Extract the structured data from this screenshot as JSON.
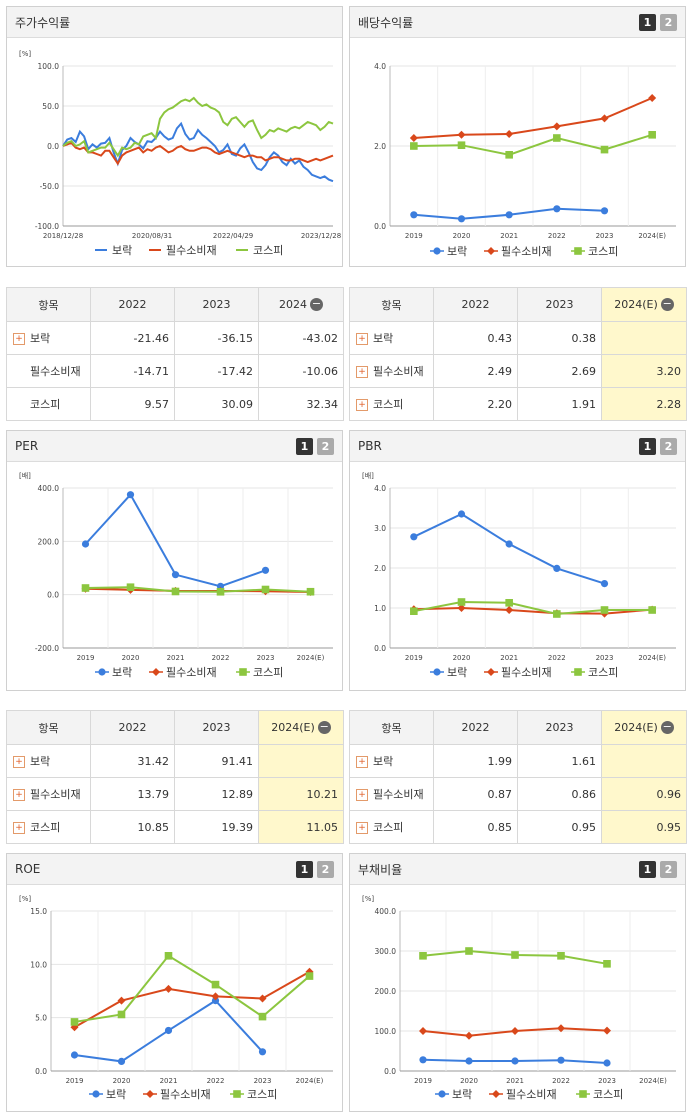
{
  "legend": {
    "s1": "보락",
    "s2": "필수소비재",
    "s3": "코스피"
  },
  "colors": {
    "s1": "#3b7ddd",
    "s2": "#d9481b",
    "s3": "#8cc63f"
  },
  "pages": [
    "1",
    "2"
  ],
  "table_header": {
    "label": "항목"
  },
  "panels": {
    "stock": {
      "title": "주가수익률",
      "unit": "[%]"
    },
    "dividend": {
      "title": "배당수익률"
    },
    "per": {
      "title": "PER",
      "unit": "[배]"
    },
    "pbr": {
      "title": "PBR",
      "unit": "[배]"
    },
    "roe": {
      "title": "ROE",
      "unit": "[%]"
    },
    "debt": {
      "title": "부채비율",
      "unit": "[%]"
    }
  },
  "tables": {
    "stock": {
      "cols": [
        "2022",
        "2023",
        "2024"
      ],
      "rows": [
        {
          "name": "보락",
          "plus": true,
          "vals": [
            "-21.46",
            "-36.15",
            "-43.02"
          ]
        },
        {
          "name": "필수소비재",
          "plus": false,
          "vals": [
            "-14.71",
            "-17.42",
            "-10.06"
          ]
        },
        {
          "name": "코스피",
          "plus": false,
          "vals": [
            "9.57",
            "30.09",
            "32.34"
          ]
        }
      ]
    },
    "dividend": {
      "cols": [
        "2022",
        "2023",
        "2024(E)"
      ],
      "rows": [
        {
          "name": "보락",
          "plus": true,
          "vals": [
            "0.43",
            "0.38",
            ""
          ]
        },
        {
          "name": "필수소비재",
          "plus": true,
          "vals": [
            "2.49",
            "2.69",
            "3.20"
          ]
        },
        {
          "name": "코스피",
          "plus": true,
          "vals": [
            "2.20",
            "1.91",
            "2.28"
          ]
        }
      ]
    },
    "per": {
      "cols": [
        "2022",
        "2023",
        "2024(E)"
      ],
      "rows": [
        {
          "name": "보락",
          "plus": true,
          "vals": [
            "31.42",
            "91.41",
            ""
          ]
        },
        {
          "name": "필수소비재",
          "plus": true,
          "vals": [
            "13.79",
            "12.89",
            "10.21"
          ]
        },
        {
          "name": "코스피",
          "plus": true,
          "vals": [
            "10.85",
            "19.39",
            "11.05"
          ]
        }
      ]
    },
    "pbr": {
      "cols": [
        "2022",
        "2023",
        "2024(E)"
      ],
      "rows": [
        {
          "name": "보락",
          "plus": true,
          "vals": [
            "1.99",
            "1.61",
            ""
          ]
        },
        {
          "name": "필수소비재",
          "plus": true,
          "vals": [
            "0.87",
            "0.86",
            "0.96"
          ]
        },
        {
          "name": "코스피",
          "plus": true,
          "vals": [
            "0.85",
            "0.95",
            "0.95"
          ]
        }
      ]
    }
  },
  "chart_data": [
    {
      "id": "stock",
      "type": "line",
      "ylim": [
        -100,
        100
      ],
      "yticks": [
        "100.0",
        "50.0",
        "0.0",
        "-50.0",
        "-100.0"
      ],
      "xticks": [
        "2018/12/28",
        "2020/08/31",
        "2022/04/29",
        "2023/12/28"
      ],
      "series": [
        {
          "name": "보락",
          "values": [
            0,
            8,
            10,
            5,
            18,
            12,
            -4,
            2,
            -2,
            3,
            4,
            10,
            -8,
            -22,
            -5,
            0,
            10,
            5,
            2,
            -3,
            6,
            5,
            10,
            18,
            12,
            8,
            10,
            22,
            28,
            15,
            8,
            10,
            20,
            14,
            10,
            5,
            0,
            -8,
            -5,
            2,
            -10,
            -12,
            -3,
            2,
            -8,
            -20,
            -28,
            -30,
            -24,
            -14,
            -8,
            -12,
            -20,
            -24,
            -16,
            -22,
            -18,
            -26,
            -30,
            -36,
            -38,
            -40,
            -38,
            -42,
            -44
          ]
        },
        {
          "name": "필수소비재",
          "values": [
            0,
            2,
            4,
            -2,
            -4,
            -2,
            -8,
            -8,
            -10,
            -12,
            -6,
            -6,
            -14,
            -22,
            -12,
            -8,
            -6,
            -4,
            -2,
            -8,
            -4,
            -6,
            -2,
            0,
            -4,
            -8,
            -6,
            -2,
            0,
            -4,
            -6,
            -6,
            -4,
            -2,
            -2,
            -4,
            -8,
            -10,
            -8,
            -6,
            -8,
            -10,
            -12,
            -14,
            -12,
            -12,
            -14,
            -14,
            -18,
            -16,
            -14,
            -14,
            -16,
            -18,
            -18,
            -16,
            -16,
            -18,
            -20,
            -18,
            -16,
            -18,
            -16,
            -14,
            -12
          ]
        },
        {
          "name": "코스피",
          "values": [
            0,
            4,
            6,
            0,
            2,
            6,
            -8,
            -6,
            -4,
            -2,
            -2,
            4,
            -4,
            -12,
            -2,
            -4,
            -2,
            4,
            2,
            12,
            14,
            16,
            10,
            34,
            42,
            46,
            48,
            52,
            56,
            58,
            56,
            60,
            54,
            50,
            52,
            48,
            46,
            42,
            30,
            26,
            34,
            36,
            30,
            24,
            30,
            32,
            20,
            10,
            14,
            20,
            18,
            22,
            20,
            18,
            22,
            24,
            22,
            26,
            30,
            28,
            26,
            20,
            24,
            30,
            28
          ]
        }
      ]
    },
    {
      "id": "dividend",
      "type": "line",
      "ylim": [
        0,
        4
      ],
      "yticks": [
        "4.0",
        "2.0",
        "0.0"
      ],
      "categories": [
        "2019",
        "2020",
        "2021",
        "2022",
        "2023",
        "2024(E)"
      ],
      "series": [
        {
          "name": "보락",
          "values": [
            0.28,
            0.18,
            0.28,
            0.43,
            0.38,
            null
          ]
        },
        {
          "name": "필수소비재",
          "values": [
            2.2,
            2.28,
            2.3,
            2.49,
            2.69,
            3.2
          ]
        },
        {
          "name": "코스피",
          "values": [
            2.0,
            2.02,
            1.78,
            2.2,
            1.91,
            2.28
          ]
        }
      ]
    },
    {
      "id": "per",
      "type": "line",
      "ylim": [
        -200,
        400
      ],
      "yticks": [
        "400.0",
        "200.0",
        "0.0",
        "-200.0"
      ],
      "categories": [
        "2019",
        "2020",
        "2021",
        "2022",
        "2023",
        "2024(E)"
      ],
      "series": [
        {
          "name": "보락",
          "values": [
            190,
            375,
            75,
            31.42,
            91.41,
            null
          ]
        },
        {
          "name": "필수소비재",
          "values": [
            22,
            18,
            14,
            13.79,
            12.89,
            10.21
          ]
        },
        {
          "name": "코스피",
          "values": [
            25,
            28,
            12,
            10.85,
            19.39,
            11.05
          ]
        }
      ]
    },
    {
      "id": "pbr",
      "type": "line",
      "ylim": [
        0,
        4
      ],
      "yticks": [
        "4.0",
        "3.0",
        "2.0",
        "1.0",
        "0.0"
      ],
      "categories": [
        "2019",
        "2020",
        "2021",
        "2022",
        "2023",
        "2024(E)"
      ],
      "series": [
        {
          "name": "보락",
          "values": [
            2.78,
            3.35,
            2.6,
            1.99,
            1.61,
            null
          ]
        },
        {
          "name": "필수소비재",
          "values": [
            0.97,
            1.0,
            0.95,
            0.87,
            0.86,
            0.96
          ]
        },
        {
          "name": "코스피",
          "values": [
            0.92,
            1.15,
            1.13,
            0.85,
            0.95,
            0.95
          ]
        }
      ]
    },
    {
      "id": "roe",
      "type": "line",
      "ylim": [
        0,
        15
      ],
      "yticks": [
        "15.0",
        "10.0",
        "5.0",
        "0.0"
      ],
      "categories": [
        "2019",
        "2020",
        "2021",
        "2022",
        "2023",
        "2024(E)"
      ],
      "series": [
        {
          "name": "보락",
          "values": [
            1.5,
            0.9,
            3.8,
            6.6,
            1.8,
            null
          ]
        },
        {
          "name": "필수소비재",
          "values": [
            4.1,
            6.6,
            7.7,
            7.0,
            6.8,
            9.3
          ]
        },
        {
          "name": "코스피",
          "values": [
            4.6,
            5.3,
            10.8,
            8.1,
            5.1,
            8.9
          ]
        }
      ]
    },
    {
      "id": "debt",
      "type": "line",
      "ylim": [
        0,
        400
      ],
      "yticks": [
        "400.0",
        "300.0",
        "200.0",
        "100.0",
        "0.0"
      ],
      "categories": [
        "2019",
        "2020",
        "2021",
        "2022",
        "2023",
        "2024(E)"
      ],
      "series": [
        {
          "name": "보락",
          "values": [
            28,
            25,
            25,
            27,
            20,
            null
          ]
        },
        {
          "name": "필수소비재",
          "values": [
            100,
            88,
            100,
            107,
            101,
            null
          ]
        },
        {
          "name": "코스피",
          "values": [
            288,
            300,
            290,
            288,
            268,
            null
          ]
        }
      ]
    }
  ]
}
